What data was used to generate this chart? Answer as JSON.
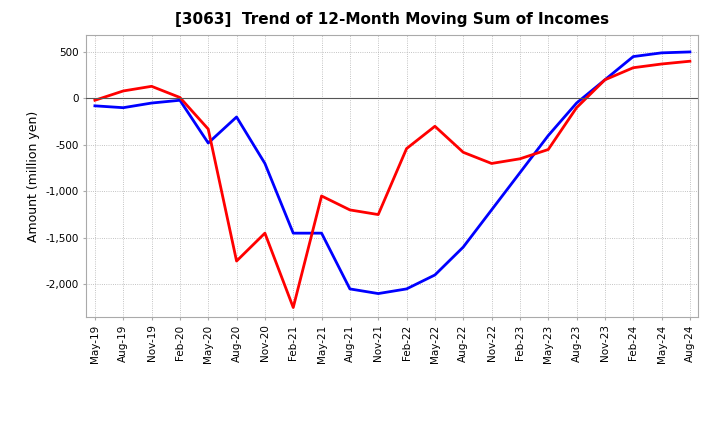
{
  "title": "[3063]  Trend of 12-Month Moving Sum of Incomes",
  "ylabel": "Amount (million yen)",
  "ylim": [
    -2350,
    680
  ],
  "yticks": [
    500,
    0,
    -500,
    -1000,
    -1500,
    -2000
  ],
  "background_color": "#ffffff",
  "grid_color": "#b0b0b0",
  "ordinary_income_color": "#0000ff",
  "net_income_color": "#ff0000",
  "x_labels": [
    "May-19",
    "Aug-19",
    "Nov-19",
    "Feb-20",
    "May-20",
    "Aug-20",
    "Nov-20",
    "Feb-21",
    "May-21",
    "Aug-21",
    "Nov-21",
    "Feb-22",
    "May-22",
    "Aug-22",
    "Nov-22",
    "Feb-23",
    "May-23",
    "Aug-23",
    "Nov-23",
    "Feb-24",
    "May-24",
    "Aug-24"
  ],
  "ordinary_income": [
    -80,
    -100,
    -50,
    -20,
    -480,
    -200,
    -700,
    -1450,
    -1450,
    -2050,
    -2100,
    -2050,
    -1900,
    -1600,
    -1200,
    -800,
    -400,
    -50,
    200,
    450,
    490,
    500
  ],
  "net_income": [
    -20,
    80,
    130,
    10,
    -330,
    -1750,
    -1450,
    -2250,
    -1050,
    -1200,
    -1250,
    -540,
    -300,
    -580,
    -700,
    -650,
    -550,
    -100,
    200,
    330,
    370,
    400
  ]
}
